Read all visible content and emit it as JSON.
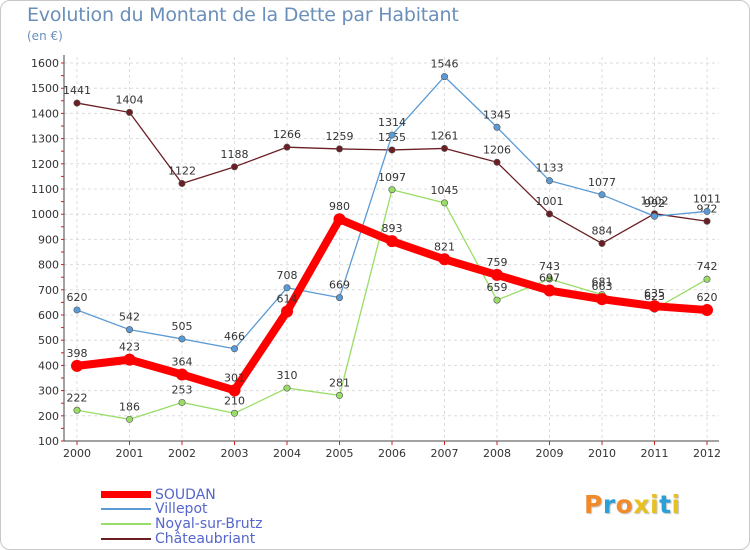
{
  "title": "Evolution du Montant de la Dette par Habitant",
  "subtitle": "(en €)",
  "logo_text": "Proxiti",
  "logo_colors": [
    "#f08a2a",
    "#2aa0d8",
    "#f08a2a",
    "#e8c020",
    "#e8c020",
    "#2aa0d8",
    "#e8c020"
  ],
  "chart_data": {
    "type": "line",
    "x": [
      "2000",
      "2001",
      "2002",
      "2003",
      "2004",
      "2005",
      "2006",
      "2007",
      "2008",
      "2009",
      "2010",
      "2011",
      "2012"
    ],
    "ylim": [
      100,
      1600
    ],
    "yticks": [
      100,
      200,
      300,
      400,
      500,
      600,
      700,
      800,
      900,
      1000,
      1100,
      1200,
      1300,
      1400,
      1500,
      1600
    ],
    "grid": true,
    "legend_position": "bottom-left",
    "series": [
      {
        "name": "Châteaubriant",
        "color": "#6b1f24",
        "values": [
          1441,
          1404,
          1122,
          1188,
          1266,
          1259,
          1255,
          1261,
          1206,
          1001,
          884,
          1002,
          972
        ],
        "labels": [
          "1441",
          "1404",
          "1122",
          "1188",
          "1266",
          "1259",
          "1255",
          "1261",
          "1206",
          "1001",
          "884",
          "1002",
          "972"
        ]
      },
      {
        "name": "Noyal-sur-Brutz",
        "color": "#99dd66",
        "values": [
          222,
          186,
          253,
          210,
          310,
          281,
          1097,
          1045,
          659,
          743,
          681,
          623,
          742
        ],
        "labels": [
          "222",
          "186",
          "253",
          "210",
          "310",
          "281",
          "1097",
          "1045",
          "659",
          "743",
          "681",
          "623",
          "742"
        ]
      },
      {
        "name": "Villepot",
        "color": "#5b9bd5",
        "values": [
          620,
          542,
          505,
          466,
          708,
          669,
          1314,
          1546,
          1345,
          1133,
          1077,
          992,
          1011
        ],
        "labels": [
          "620",
          "542",
          "505",
          "466",
          "708",
          "669",
          "1314",
          "1546",
          "1345",
          "1133",
          "1077",
          "992",
          "1011"
        ]
      },
      {
        "name": "SOUDAN",
        "color": "#ff0000",
        "values": [
          398,
          423,
          364,
          301,
          614,
          980,
          893,
          821,
          759,
          697,
          663,
          635,
          620
        ],
        "labels": [
          "398",
          "423",
          "364",
          "301",
          "614",
          "980",
          "893",
          "821",
          "759",
          "697",
          "663",
          "635",
          "620"
        ]
      }
    ],
    "legend": [
      "SOUDAN",
      "Villepot",
      "Noyal-sur-Brutz",
      "Châteaubriant"
    ]
  }
}
